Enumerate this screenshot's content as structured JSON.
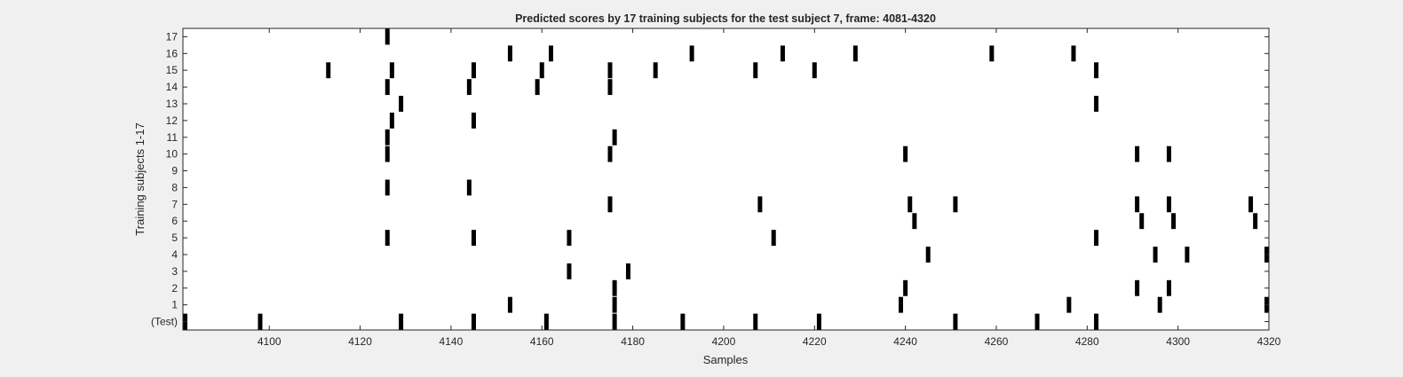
{
  "chart_data": {
    "type": "scatter",
    "title": "Predicted scores by 17 training subjects for the test subject 7, frame: 4081-4320",
    "xlabel": "Samples",
    "ylabel": "Training subjects 1-17",
    "xlim": [
      4081,
      4320
    ],
    "x_ticks": [
      4100,
      4120,
      4140,
      4160,
      4180,
      4200,
      4220,
      4240,
      4260,
      4280,
      4300,
      4320
    ],
    "y_tick_labels": [
      "(Test)",
      "1",
      "2",
      "3",
      "4",
      "5",
      "6",
      "7",
      "8",
      "9",
      "10",
      "11",
      "12",
      "13",
      "14",
      "15",
      "16",
      "17"
    ],
    "grid": false,
    "marker": "vertical-bar",
    "marker_color": "#000000",
    "rows": [
      {
        "label": "(Test)",
        "x": [
          4081,
          4098,
          4129,
          4145,
          4161,
          4176,
          4191,
          4207,
          4221,
          4251,
          4269,
          4282
        ]
      },
      {
        "label": "1",
        "x": [
          4153,
          4176,
          4239,
          4276,
          4296,
          4320
        ]
      },
      {
        "label": "2",
        "x": [
          4176,
          4240,
          4291,
          4298
        ]
      },
      {
        "label": "3",
        "x": [
          4166,
          4179
        ]
      },
      {
        "label": "4",
        "x": [
          4245,
          4295,
          4302,
          4320
        ]
      },
      {
        "label": "5",
        "x": [
          4126,
          4145,
          4166,
          4211,
          4282
        ]
      },
      {
        "label": "6",
        "x": [
          4242,
          4292,
          4299,
          4317
        ]
      },
      {
        "label": "7",
        "x": [
          4175,
          4208,
          4241,
          4251,
          4291,
          4298,
          4316
        ]
      },
      {
        "label": "8",
        "x": [
          4126,
          4144
        ]
      },
      {
        "label": "9",
        "x": []
      },
      {
        "label": "10",
        "x": [
          4126,
          4175,
          4240,
          4291,
          4298
        ]
      },
      {
        "label": "11",
        "x": [
          4126,
          4176
        ]
      },
      {
        "label": "12",
        "x": [
          4127,
          4145
        ]
      },
      {
        "label": "13",
        "x": [
          4129,
          4282
        ]
      },
      {
        "label": "14",
        "x": [
          4126,
          4144,
          4159,
          4175
        ]
      },
      {
        "label": "15",
        "x": [
          4113,
          4127,
          4145,
          4160,
          4175,
          4185,
          4207,
          4220,
          4282
        ]
      },
      {
        "label": "16",
        "x": [
          4153,
          4162,
          4193,
          4213,
          4229,
          4259,
          4277
        ]
      },
      {
        "label": "17",
        "x": [
          4126
        ]
      }
    ]
  }
}
